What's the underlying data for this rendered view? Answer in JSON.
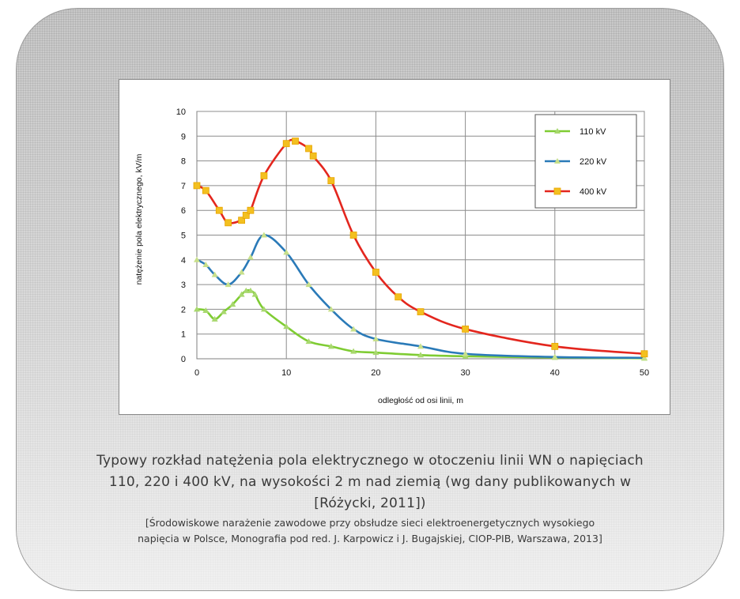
{
  "chart_data": {
    "type": "line",
    "xlabel": "odległość od osi linii, m",
    "ylabel": "natężenie pola elektrycznego, kV/m",
    "xlim": [
      0,
      50
    ],
    "ylim": [
      0,
      10
    ],
    "xticks": [
      "0",
      "10",
      "20",
      "30",
      "40",
      "50"
    ],
    "yticks": [
      "0",
      "1",
      "2",
      "3",
      "4",
      "5",
      "6",
      "7",
      "8",
      "9",
      "10"
    ],
    "grid": true,
    "legend_position": "top-right",
    "series": [
      {
        "name": "110 kV",
        "color": "#7fcc33",
        "marker_color": "#a8d86e",
        "points": [
          [
            0,
            2.0
          ],
          [
            1,
            1.95
          ],
          [
            2,
            1.6
          ],
          [
            3,
            1.9
          ],
          [
            4,
            2.2
          ],
          [
            5,
            2.6
          ],
          [
            5.5,
            2.75
          ],
          [
            6,
            2.75
          ],
          [
            6.5,
            2.6
          ],
          [
            7.5,
            2.0
          ],
          [
            10,
            1.3
          ],
          [
            12.5,
            0.7
          ],
          [
            15,
            0.5
          ],
          [
            17.5,
            0.3
          ],
          [
            20,
            0.25
          ],
          [
            25,
            0.15
          ],
          [
            30,
            0.1
          ],
          [
            40,
            0.05
          ],
          [
            50,
            0.02
          ]
        ]
      },
      {
        "name": "220 kV",
        "color": "#2a7ab8",
        "marker_color": "#c8e08a",
        "points": [
          [
            0,
            4.0
          ],
          [
            1,
            3.8
          ],
          [
            2,
            3.4
          ],
          [
            3.5,
            3.0
          ],
          [
            5,
            3.5
          ],
          [
            6,
            4.1
          ],
          [
            7.5,
            5.0
          ],
          [
            10,
            4.3
          ],
          [
            12.5,
            3.0
          ],
          [
            15,
            2.0
          ],
          [
            17.5,
            1.2
          ],
          [
            20,
            0.8
          ],
          [
            25,
            0.5
          ],
          [
            30,
            0.2
          ],
          [
            40,
            0.07
          ],
          [
            50,
            0.04
          ]
        ]
      },
      {
        "name": "400 kV",
        "color": "#e3261e",
        "marker_color": "#f3c020",
        "points": [
          [
            0,
            7.0
          ],
          [
            1,
            6.8
          ],
          [
            2.5,
            6.0
          ],
          [
            3.5,
            5.5
          ],
          [
            5,
            5.6
          ],
          [
            5.5,
            5.8
          ],
          [
            6,
            6.0
          ],
          [
            7.5,
            7.4
          ],
          [
            10,
            8.7
          ],
          [
            11,
            8.8
          ],
          [
            12.5,
            8.5
          ],
          [
            13,
            8.2
          ],
          [
            15,
            7.2
          ],
          [
            17.5,
            5.0
          ],
          [
            20,
            3.5
          ],
          [
            22.5,
            2.5
          ],
          [
            25,
            1.9
          ],
          [
            30,
            1.2
          ],
          [
            40,
            0.5
          ],
          [
            50,
            0.2
          ]
        ]
      }
    ]
  },
  "caption": {
    "line1": "Typowy rozkład natężenia pola elektrycznego w otoczeniu linii WN o napięciach",
    "line2": "110, 220 i 400 kV, na wysokości 2 m nad ziemią (wg dany publikowanych w",
    "line3": "[Różycki, 2011])",
    "source_line1": "[Środowiskowe narażenie zawodowe przy obsłudze sieci elektroenergetycznych wysokiego",
    "source_line2": "napięcia w Polsce, Monografia pod red. J. Karpowicz i J. Bugajskiej, CIOP-PIB, Warszawa, 2013]"
  }
}
